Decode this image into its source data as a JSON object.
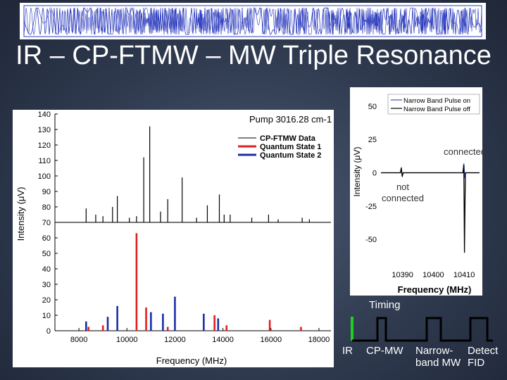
{
  "title": "IR – CP-FTMW – MW Triple Resonance",
  "chart_data": [
    {
      "type": "bar",
      "title": "Pump 3016.28 cm-1",
      "xlabel": "Frequency (MHz)",
      "ylabel": "Intensity (μV)",
      "xlim": [
        7000,
        18500
      ],
      "ylim": [
        0,
        140
      ],
      "xticks": [
        8000,
        10000,
        12000,
        14000,
        16000,
        18000
      ],
      "yticks": [
        0,
        10,
        20,
        30,
        40,
        50,
        60,
        70,
        80,
        90,
        100,
        110,
        120,
        130,
        140
      ],
      "legend_position": "top-right",
      "series": [
        {
          "name": "CP-FTMW Data",
          "color": "#000000",
          "baseline": 70,
          "points": [
            {
              "x": 8300,
              "y": 79
            },
            {
              "x": 8700,
              "y": 75
            },
            {
              "x": 9000,
              "y": 74
            },
            {
              "x": 9400,
              "y": 80
            },
            {
              "x": 9600,
              "y": 87
            },
            {
              "x": 10100,
              "y": 73
            },
            {
              "x": 10400,
              "y": 74
            },
            {
              "x": 10700,
              "y": 112
            },
            {
              "x": 10950,
              "y": 132
            },
            {
              "x": 11400,
              "y": 77
            },
            {
              "x": 11700,
              "y": 85
            },
            {
              "x": 12300,
              "y": 99
            },
            {
              "x": 12900,
              "y": 73
            },
            {
              "x": 13350,
              "y": 81
            },
            {
              "x": 13850,
              "y": 88
            },
            {
              "x": 14050,
              "y": 75
            },
            {
              "x": 14300,
              "y": 75
            },
            {
              "x": 15200,
              "y": 73
            },
            {
              "x": 15900,
              "y": 75
            },
            {
              "x": 16300,
              "y": 72
            },
            {
              "x": 17300,
              "y": 73
            },
            {
              "x": 17600,
              "y": 72
            }
          ]
        },
        {
          "name": "Quantum State 1",
          "color": "#e0201e",
          "points": [
            {
              "x": 8400,
              "y": 2.5
            },
            {
              "x": 9000,
              "y": 3.5
            },
            {
              "x": 10400,
              "y": 63
            },
            {
              "x": 10800,
              "y": 15
            },
            {
              "x": 11700,
              "y": 2.5
            },
            {
              "x": 13650,
              "y": 10
            },
            {
              "x": 14150,
              "y": 3.5
            },
            {
              "x": 15950,
              "y": 7
            },
            {
              "x": 17250,
              "y": 2.5
            }
          ]
        },
        {
          "name": "Quantum State 2",
          "color": "#1a2ea8",
          "points": [
            {
              "x": 8300,
              "y": 6
            },
            {
              "x": 9200,
              "y": 9
            },
            {
              "x": 9600,
              "y": 16
            },
            {
              "x": 11000,
              "y": 12
            },
            {
              "x": 11500,
              "y": 11
            },
            {
              "x": 12000,
              "y": 22
            },
            {
              "x": 13200,
              "y": 11
            },
            {
              "x": 13800,
              "y": 8
            }
          ]
        }
      ]
    },
    {
      "type": "line",
      "xlabel": "Frequency (MHz)",
      "ylabel": "Intensity (μV)",
      "xlim": [
        10383,
        10415
      ],
      "ylim": [
        -70,
        60
      ],
      "xticks": [
        10390,
        10400,
        10410
      ],
      "yticks": [
        50,
        25,
        0,
        -25,
        -50
      ],
      "legend_position": "top-right",
      "series": [
        {
          "name": "Narrow Band Pulse on",
          "color": "#3a4fc0",
          "points": [
            {
              "x": 10383,
              "y": 0
            },
            {
              "x": 10389.3,
              "y": 0
            },
            {
              "x": 10389.6,
              "y": 2
            },
            {
              "x": 10389.9,
              "y": -2
            },
            {
              "x": 10390.2,
              "y": 0
            },
            {
              "x": 10409.6,
              "y": 0
            },
            {
              "x": 10409.9,
              "y": 7
            },
            {
              "x": 10410.2,
              "y": -4
            },
            {
              "x": 10410.5,
              "y": 0
            },
            {
              "x": 10415,
              "y": 0
            }
          ]
        },
        {
          "name": "Narrow Band Pulse off",
          "color": "#000000",
          "points": [
            {
              "x": 10383,
              "y": 0
            },
            {
              "x": 10389.3,
              "y": 0
            },
            {
              "x": 10389.6,
              "y": 4
            },
            {
              "x": 10389.9,
              "y": -3
            },
            {
              "x": 10390.2,
              "y": 0
            },
            {
              "x": 10409.6,
              "y": 0
            },
            {
              "x": 10409.9,
              "y": 6
            },
            {
              "x": 10410.1,
              "y": -60
            },
            {
              "x": 10410.4,
              "y": 0
            },
            {
              "x": 10415,
              "y": 0
            }
          ]
        }
      ],
      "annotations": [
        "connected",
        "not connected"
      ]
    }
  ],
  "timing": {
    "title": "Timing",
    "labels": [
      "IR",
      "CP-MW",
      "Narrow-band MW",
      "Detect FID"
    ],
    "colors": {
      "ir": "#1fd01f",
      "pulse": "#000000"
    }
  }
}
